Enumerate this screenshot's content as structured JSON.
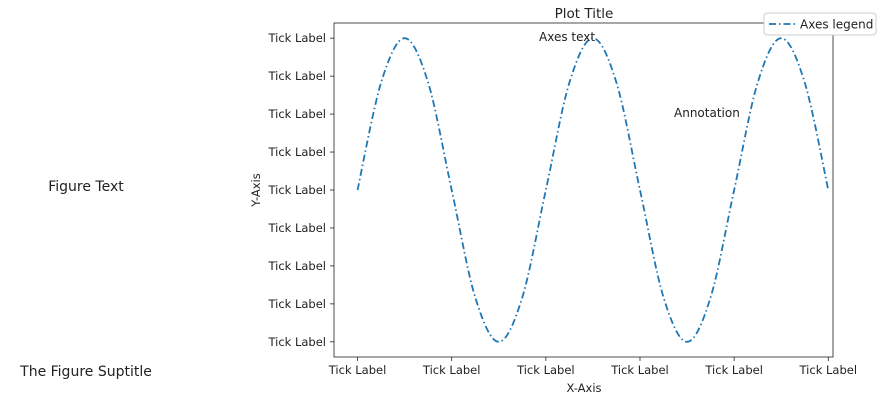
{
  "figure": {
    "suptitle": "The Figure Suptitle",
    "figure_text": "Figure Text"
  },
  "chart_data": {
    "type": "line",
    "title": "Plot Title",
    "xlabel": "X-Axis",
    "ylabel": "Y-Axis",
    "axes_text": "Axes text",
    "annotation": "Annotation",
    "legend": {
      "placement": "top-right",
      "entries": [
        "Axes legend"
      ]
    },
    "xlim": [
      -0.25,
      5.05
    ],
    "ylim": [
      -1.1,
      1.1
    ],
    "x_ticks": [
      0,
      1,
      2,
      3,
      4,
      5
    ],
    "y_ticks": [
      -1.0,
      -0.75,
      -0.5,
      -0.25,
      0.0,
      0.25,
      0.5,
      0.75,
      1.0
    ],
    "x_tick_labels": [
      "Tick Label",
      "Tick Label",
      "Tick Label",
      "Tick Label",
      "Tick Label",
      "Tick Label"
    ],
    "y_tick_labels": [
      "Tick Label",
      "Tick Label",
      "Tick Label",
      "Tick Label",
      "Tick Label",
      "Tick Label",
      "Tick Label",
      "Tick Label",
      "Tick Label"
    ],
    "grid": false,
    "series": [
      {
        "name": "Axes legend",
        "color": "#1f77b4",
        "linestyle": "dashdot",
        "x": [
          0,
          0.25,
          0.5,
          0.75,
          1.0,
          1.25,
          1.5,
          1.75,
          2.0,
          2.25,
          2.5,
          2.75,
          3.0,
          3.25,
          3.5,
          3.75,
          4.0,
          4.25,
          4.5,
          4.75,
          5.0
        ],
        "y": [
          0,
          0.707,
          1.0,
          0.707,
          0,
          -0.707,
          -1.0,
          -0.707,
          0,
          0.707,
          1.0,
          0.707,
          0,
          -0.707,
          -1.0,
          -0.707,
          0,
          0.707,
          1.0,
          0.707,
          0
        ]
      }
    ]
  }
}
